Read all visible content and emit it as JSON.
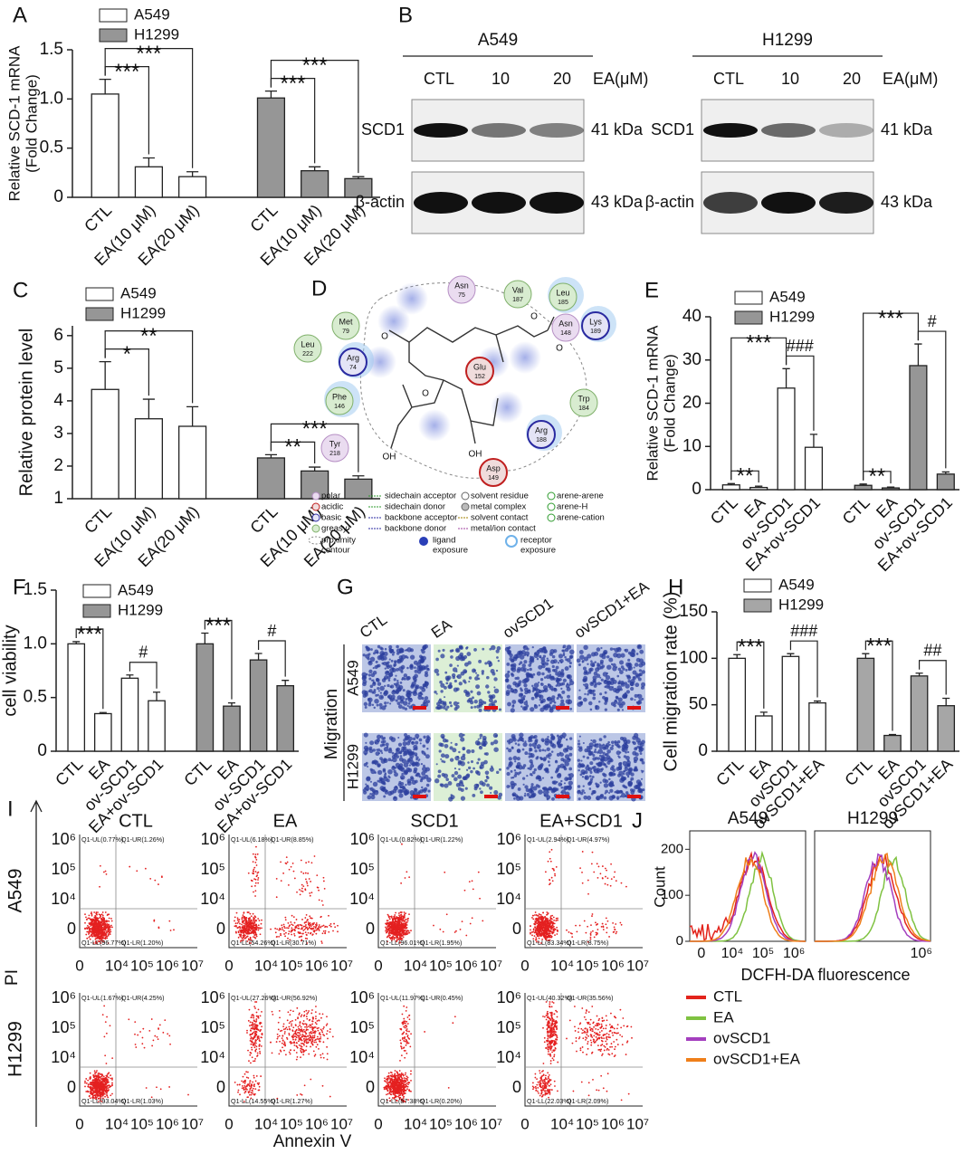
{
  "panel_labels": [
    "A",
    "B",
    "C",
    "D",
    "E",
    "F",
    "G",
    "H",
    "I",
    "J"
  ],
  "chart_data": [
    {
      "type": "bar",
      "ylabel": [
        "Relative SCD-1 mRNA",
        "(Fold Change)"
      ],
      "categories": [
        "CTL",
        "EA(10 μM)",
        "EA(20 μM)",
        "CTL",
        "EA(10 μM)",
        "EA(20 μM)"
      ],
      "series": [
        {
          "name": "A549",
          "color": "#ffffff",
          "values": [
            1.05,
            0.31,
            0.21,
            null,
            null,
            null
          ],
          "errors": [
            0.15,
            0.09,
            0.05,
            null,
            null,
            null
          ]
        },
        {
          "name": "H1299",
          "color": "#969696",
          "values": [
            null,
            null,
            null,
            1.01,
            0.27,
            0.19
          ],
          "errors": [
            null,
            null,
            null,
            0.07,
            0.04,
            0.02
          ]
        }
      ],
      "ylim": [
        0,
        1.5
      ],
      "yticks": [
        0,
        0.5,
        {
          "value": 1,
          "label": "1.0"
        },
        1.5
      ],
      "annotations": [
        {
          "text": "***",
          "pair": [
            0,
            1
          ]
        },
        {
          "text": "***",
          "pair": [
            0,
            2
          ]
        },
        {
          "text": "***",
          "pair": [
            3,
            4
          ]
        },
        {
          "text": "***",
          "pair": [
            3,
            5
          ]
        }
      ]
    },
    {
      "type": "bar",
      "ylabel": [
        "Relative protein level"
      ],
      "categories": [
        "CTL",
        "EA(10 μM)",
        "EA(20 μM)",
        "CTL",
        "EA(10 μM)",
        "EA(20 μM)"
      ],
      "series": [
        {
          "name": "A549",
          "color": "#ffffff",
          "values": [
            4.35,
            3.45,
            3.22,
            null,
            null,
            null
          ],
          "errors": [
            0.85,
            0.6,
            0.6,
            null,
            null,
            null
          ]
        },
        {
          "name": "H1299",
          "color": "#969696",
          "values": [
            null,
            null,
            null,
            2.25,
            1.85,
            1.6
          ],
          "errors": [
            null,
            null,
            null,
            0.1,
            0.12,
            0.1
          ]
        }
      ],
      "ylim": [
        1,
        6.3
      ],
      "yticks": [
        1,
        2,
        3,
        4,
        5,
        6
      ],
      "annotations": [
        {
          "text": "*",
          "pair": [
            0,
            1
          ]
        },
        {
          "text": "**",
          "pair": [
            0,
            2
          ]
        },
        {
          "text": "**",
          "pair": [
            3,
            4
          ]
        },
        {
          "text": "***",
          "pair": [
            3,
            5
          ]
        }
      ]
    },
    {
      "type": "bar",
      "ylabel": [
        "Relative SCD-1 mRNA",
        "(Fold Change)"
      ],
      "categories": [
        "CTL",
        "EA",
        "ov-SCD1",
        "EA+ov-SCD1",
        "CTL",
        "EA",
        "ov-SCD1",
        "EA+ov-SCD1"
      ],
      "series": [
        {
          "name": "A549",
          "color": "#ffffff",
          "values": [
            1.1,
            0.5,
            23.5,
            9.8,
            null,
            null,
            null,
            null
          ],
          "errors": [
            0.3,
            0.3,
            4.5,
            3,
            null,
            null,
            null,
            null
          ]
        },
        {
          "name": "H1299",
          "color": "#969696",
          "values": [
            null,
            null,
            null,
            null,
            1.0,
            0.4,
            28.7,
            3.6
          ],
          "errors": [
            null,
            null,
            null,
            null,
            0.3,
            0.2,
            5,
            0.5
          ]
        }
      ],
      "ylim": [
        0,
        40
      ],
      "yticks": [
        0,
        10,
        20,
        30,
        40
      ],
      "annotations": [
        {
          "text": "**",
          "pair": [
            0,
            1
          ]
        },
        {
          "text": "***",
          "pair": [
            0,
            2
          ]
        },
        {
          "text": "###",
          "pair": [
            2,
            3
          ]
        },
        {
          "text": "**",
          "pair": [
            4,
            5
          ]
        },
        {
          "text": "***",
          "pair": [
            4,
            6
          ]
        },
        {
          "text": "#",
          "pair": [
            6,
            7
          ]
        }
      ]
    },
    {
      "type": "bar",
      "ylabel": [
        "cell viability"
      ],
      "categories": [
        "CTL",
        "EA",
        "ov-SCD1",
        "EA+ov-SCD1",
        "CTL",
        "EA",
        "ov-SCD1",
        "EA+ov-SCD1"
      ],
      "series": [
        {
          "name": "A549",
          "color": "#ffffff",
          "values": [
            1.0,
            0.35,
            0.68,
            0.47,
            null,
            null,
            null,
            null
          ],
          "errors": [
            0.02,
            0.01,
            0.03,
            0.08,
            null,
            null,
            null,
            null
          ]
        },
        {
          "name": "H1299",
          "color": "#969696",
          "values": [
            null,
            null,
            null,
            null,
            1.0,
            0.42,
            0.85,
            0.61
          ],
          "errors": [
            null,
            null,
            null,
            null,
            0.1,
            0.03,
            0.06,
            0.05
          ]
        }
      ],
      "ylim": [
        0,
        1.5
      ],
      "yticks": [
        0,
        0.5,
        {
          "value": 1,
          "label": "1.0"
        },
        1.5
      ],
      "annotations": [
        {
          "text": "***",
          "pair": [
            0,
            1
          ]
        },
        {
          "text": "#",
          "pair": [
            2,
            3
          ]
        },
        {
          "text": "***",
          "pair": [
            4,
            5
          ]
        },
        {
          "text": "#",
          "pair": [
            6,
            7
          ]
        }
      ]
    },
    {
      "type": "bar",
      "ylabel": [
        "Cell migration rate (%)"
      ],
      "categories": [
        "CTL",
        "EA",
        "ovSCD1",
        "ovSCD1+EA",
        "CTL",
        "EA",
        "ovSCD1",
        "ovSCD1+EA"
      ],
      "series": [
        {
          "name": "A549",
          "color": "#ffffff",
          "values": [
            100,
            38,
            102,
            52,
            null,
            null,
            null,
            null
          ],
          "errors": [
            4,
            4,
            3,
            2,
            null,
            null,
            null,
            null
          ]
        },
        {
          "name": "H1299",
          "color": "#a6a6a6",
          "values": [
            null,
            null,
            null,
            null,
            100,
            17,
            81,
            49
          ],
          "errors": [
            null,
            null,
            null,
            null,
            5,
            1,
            3,
            8
          ]
        }
      ],
      "ylim": [
        0,
        150
      ],
      "yticks": [
        0,
        50,
        100,
        150
      ],
      "annotations": [
        {
          "text": "***",
          "pair": [
            0,
            1
          ]
        },
        {
          "text": "###",
          "pair": [
            2,
            3
          ]
        },
        {
          "text": "***",
          "pair": [
            4,
            5
          ]
        },
        {
          "text": "##",
          "pair": [
            6,
            7
          ]
        }
      ]
    }
  ],
  "blots": [
    {
      "cell": "A549",
      "lanes": [
        "CTL",
        "10",
        "20"
      ],
      "treatment": "EA(μM)",
      "rows": [
        {
          "protein": "SCD1",
          "size": "41 kDa"
        },
        {
          "protein": "β-actin",
          "size": "43 kDa"
        }
      ]
    },
    {
      "cell": "H1299",
      "lanes": [
        "CTL",
        "10",
        "20"
      ],
      "treatment": "EA(μM)",
      "rows": [
        {
          "protein": "SCD1",
          "size": "41 kDa"
        },
        {
          "protein": "β-actin",
          "size": "43 kDa"
        }
      ]
    }
  ],
  "docking": {
    "residues": [
      {
        "name": "Asn",
        "number": "75",
        "kind": "polar"
      },
      {
        "name": "Val",
        "number": "187",
        "kind": "greasy"
      },
      {
        "name": "Leu",
        "number": "185",
        "kind": "greasy"
      },
      {
        "name": "Asn",
        "number": "148",
        "kind": "polar"
      },
      {
        "name": "Lys",
        "number": "189",
        "kind": "basic"
      },
      {
        "name": "Met",
        "number": "79",
        "kind": "greasy"
      },
      {
        "name": "Leu",
        "number": "222",
        "kind": "greasy"
      },
      {
        "name": "Arg",
        "number": "74",
        "kind": "basic"
      },
      {
        "name": "Glu",
        "number": "152",
        "kind": "acidic"
      },
      {
        "name": "Phe",
        "number": "146",
        "kind": "greasy"
      },
      {
        "name": "Trp",
        "number": "184",
        "kind": "greasy"
      },
      {
        "name": "Arg",
        "number": "188",
        "kind": "basic"
      },
      {
        "name": "Tyr",
        "number": "218",
        "kind": "polar"
      },
      {
        "name": "Asp",
        "number": "149",
        "kind": "acidic"
      }
    ],
    "atoms": [
      "O",
      "O",
      "O",
      "O",
      "OH",
      "OH"
    ],
    "legend": [
      [
        "polar",
        "acidic",
        "basic",
        "greasy"
      ],
      [
        "sidechain acceptor",
        "sidechain donor",
        "backbone acceptor",
        "backbone donor"
      ],
      [
        "solvent residue",
        "metal complex",
        "solvent contact",
        "metal/ion contact"
      ],
      [
        "arene-arene",
        "arene-H",
        "arene-cation"
      ]
    ],
    "contour": [
      "proximity",
      "contour"
    ],
    "exposure": [
      [
        "ligand",
        "exposure"
      ],
      [
        "receptor",
        "exposure"
      ]
    ]
  },
  "migration": {
    "label": "Migration",
    "columns": [
      "CTL",
      "EA",
      "ovSCD1",
      "ovSCD1+EA"
    ],
    "rows": [
      "A549",
      "H1299"
    ]
  },
  "flow": {
    "columns": [
      "CTL",
      "EA",
      "SCD1",
      "EA+SCD1"
    ],
    "rows": [
      "A549",
      "H1299"
    ],
    "quadrants": [
      [
        [
          "Q1-UL(0.77%)",
          "Q1-UR(1.26%)",
          "Q1-LL(96.77%)",
          "Q1-LR(1.20%)"
        ],
        [
          "Q1-UL(6.18%)",
          "Q1-UR(8.85%)",
          "Q1-LL(54.26%)",
          "Q1-LR(30.71%)"
        ],
        [
          "Q1-UL(0.82%)",
          "Q1-UR(1.22%)",
          "Q1-LL(96.01%)",
          "Q1-LR(1.95%)"
        ],
        [
          "Q1-UL(2.94%)",
          "Q1-UR(4.97%)",
          "Q1-LL(83.34%)",
          "Q1-LR(8.75%)"
        ]
      ],
      [
        [
          "Q1-UL(1.67%)",
          "Q1-UR(4.25%)",
          "Q1-LL(93.04%)",
          "Q1-LR(1.03%)"
        ],
        [
          "Q1-UL(27.26%)",
          "Q1-UR(56.92%)",
          "Q1-LL(14.55%)",
          "Q1-LR(1.27%)"
        ],
        [
          "Q1-UL(11.97%)",
          "Q1-UR(0.45%)",
          "Q1-LL(87.38%)",
          "Q1-LR(0.20%)"
        ],
        [
          "Q1-UL(40.32%)",
          "Q1-UR(35.56%)",
          "Q1-LL(22.03%)",
          "Q1-LR(2.09%)"
        ]
      ]
    ],
    "yticks": [
      "10⁶",
      "10⁵",
      "10⁴",
      "0"
    ],
    "xticks": [
      "0",
      "10⁴",
      "10⁵",
      "10⁶",
      "10⁷"
    ],
    "ylabel": "PI",
    "xlabel": "Annexin V"
  },
  "histogram": {
    "type": "line",
    "ylabel": "Count",
    "xlabel": "DCFH-DA fluorescence",
    "ylim": [
      0,
      240
    ],
    "yticks": [
      0,
      100,
      200
    ],
    "panels": [
      {
        "title": "A549",
        "xticks": [
          "0",
          "10⁴",
          "10⁵",
          "10⁶"
        ]
      },
      {
        "title": "H1299",
        "xticks": [
          "10⁶"
        ]
      }
    ],
    "series": [
      {
        "name": "CTL",
        "color": "#e3241c"
      },
      {
        "name": "EA",
        "color": "#7fc241"
      },
      {
        "name": "ovSCD1",
        "color": "#a43fbf"
      },
      {
        "name": "ovSCD1+EA",
        "color": "#ef7f1a"
      }
    ]
  }
}
